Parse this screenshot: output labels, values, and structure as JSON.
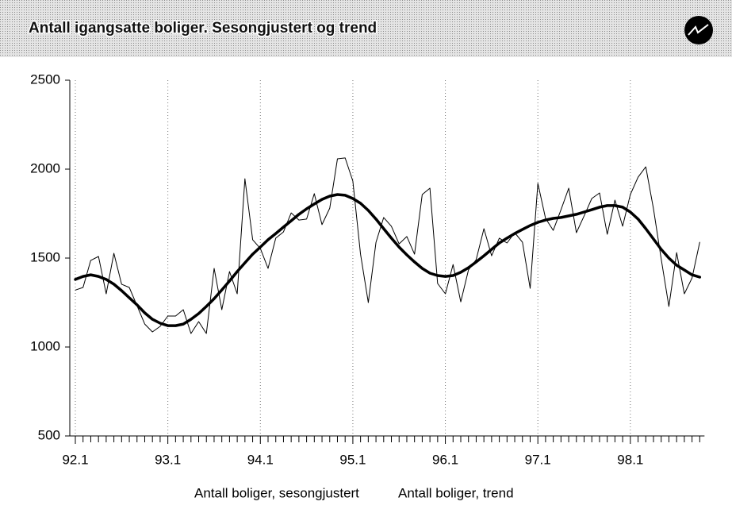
{
  "chart_data": {
    "type": "line",
    "title": "Antall igangsatte boliger. Sesongjustert og trend",
    "categories": [
      "92.1",
      null,
      null,
      null,
      null,
      null,
      null,
      null,
      null,
      null,
      null,
      null,
      "93.1",
      null,
      null,
      null,
      null,
      null,
      null,
      null,
      null,
      null,
      null,
      null,
      "94.1",
      null,
      null,
      null,
      null,
      null,
      null,
      null,
      null,
      null,
      null,
      null,
      "95.1",
      null,
      null,
      null,
      null,
      null,
      null,
      null,
      null,
      null,
      null,
      null,
      "96.1",
      null,
      null,
      null,
      null,
      null,
      null,
      null,
      null,
      null,
      null,
      null,
      "97.1",
      null,
      null,
      null,
      null,
      null,
      null,
      null,
      null,
      null,
      null,
      null,
      "98.1",
      null,
      null,
      null,
      null,
      null,
      null,
      null,
      null,
      null
    ],
    "series": [
      {
        "name": "Antall boliger, sesongjustert",
        "color": "#000000",
        "width": 1,
        "values": [
          1320,
          1335,
          1487,
          1509,
          1299,
          1527,
          1353,
          1335,
          1232,
          1129,
          1085,
          1116,
          1174,
          1174,
          1210,
          1076,
          1143,
          1076,
          1442,
          1210,
          1424,
          1299,
          1946,
          1603,
          1554,
          1442,
          1612,
          1647,
          1754,
          1714,
          1719,
          1862,
          1688,
          1781,
          2058,
          2063,
          1933,
          1522,
          1250,
          1589,
          1728,
          1679,
          1580,
          1621,
          1522,
          1857,
          1893,
          1357,
          1299,
          1464,
          1254,
          1433,
          1491,
          1665,
          1513,
          1612,
          1585,
          1643,
          1589,
          1330,
          1920,
          1723,
          1656,
          1772,
          1893,
          1643,
          1737,
          1835,
          1866,
          1634,
          1826,
          1679,
          1857,
          1955,
          2013,
          1777,
          1496,
          1228,
          1531,
          1299,
          1388,
          1589
        ]
      },
      {
        "name": "Antall boliger, trend",
        "color": "#000000",
        "width": 3.5,
        "values": [
          1380,
          1397,
          1406,
          1397,
          1380,
          1353,
          1317,
          1277,
          1237,
          1192,
          1156,
          1134,
          1120,
          1120,
          1129,
          1156,
          1188,
          1228,
          1272,
          1321,
          1371,
          1424,
          1473,
          1522,
          1562,
          1603,
          1638,
          1674,
          1710,
          1746,
          1777,
          1804,
          1830,
          1848,
          1857,
          1853,
          1835,
          1808,
          1768,
          1719,
          1665,
          1612,
          1562,
          1518,
          1478,
          1442,
          1415,
          1402,
          1397,
          1402,
          1420,
          1446,
          1478,
          1513,
          1549,
          1585,
          1612,
          1638,
          1661,
          1683,
          1701,
          1714,
          1723,
          1728,
          1737,
          1746,
          1759,
          1772,
          1786,
          1795,
          1795,
          1786,
          1759,
          1719,
          1665,
          1607,
          1549,
          1500,
          1460,
          1433,
          1406,
          1393
        ]
      }
    ],
    "ylim": [
      500,
      2500
    ],
    "yticks": [
      500,
      1000,
      1500,
      2000,
      2500
    ],
    "grid": "vertical-dotted"
  }
}
